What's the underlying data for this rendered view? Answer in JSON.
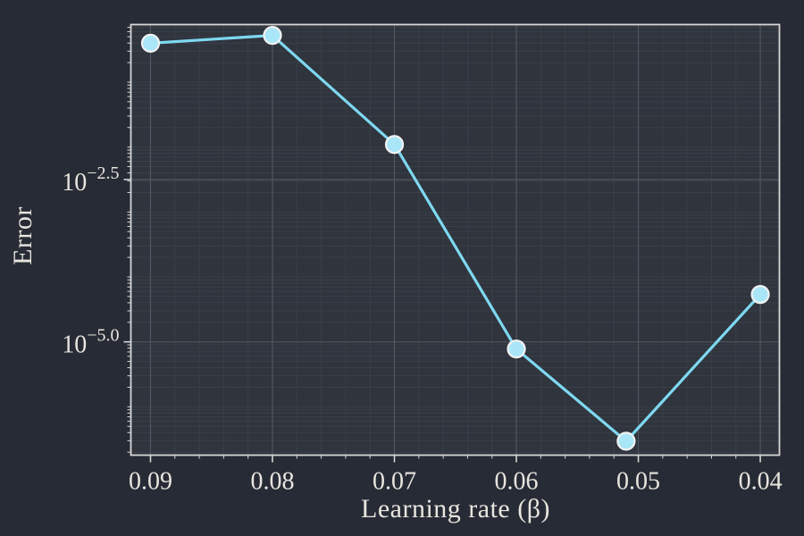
{
  "figure": {
    "background_color": "#272b35",
    "plot_background_color": "#2f343d",
    "colors": {
      "grid_minor": "#3a3f48",
      "grid_major": "#51565f",
      "spine": "#d6d6d6",
      "text": "#e8e5df",
      "line": "#7ed8f0",
      "marker_fill": "#a9e6f8",
      "marker_stroke": "#f2f2f2"
    }
  },
  "chart_data": {
    "type": "line",
    "title": "",
    "xlabel": "Learning rate (β)",
    "ylabel": "Error",
    "x": [
      0.09,
      0.08,
      0.07,
      0.06,
      0.051,
      0.04
    ],
    "y": [
      0.4,
      0.52,
      0.011,
      7.8e-06,
      3e-07,
      5.4e-05
    ],
    "log10_y": [
      -0.4,
      -0.28,
      -1.96,
      -5.11,
      -6.53,
      -4.27
    ],
    "x_axis": {
      "reversed": true,
      "range": [
        0.09161,
        0.03843
      ],
      "major_ticks": [
        0.09,
        0.08,
        0.07,
        0.06,
        0.05,
        0.04
      ],
      "tick_labels": [
        "0.09",
        "0.08",
        "0.07",
        "0.06",
        "0.05",
        "0.04"
      ],
      "minor_tick_step": 0.002
    },
    "y_axis": {
      "scale": "log10",
      "range_log10": [
        -0.113,
        -6.745
      ],
      "major_ticks_log10": [
        -2.5,
        -5.0
      ],
      "tick_labels": [
        {
          "base": "10",
          "exp": "−2.5"
        },
        {
          "base": "10",
          "exp": "−5.0"
        }
      ],
      "minor_ticks": "decades 2-9 per decade"
    },
    "grid": "major+minor",
    "legend": "none"
  }
}
